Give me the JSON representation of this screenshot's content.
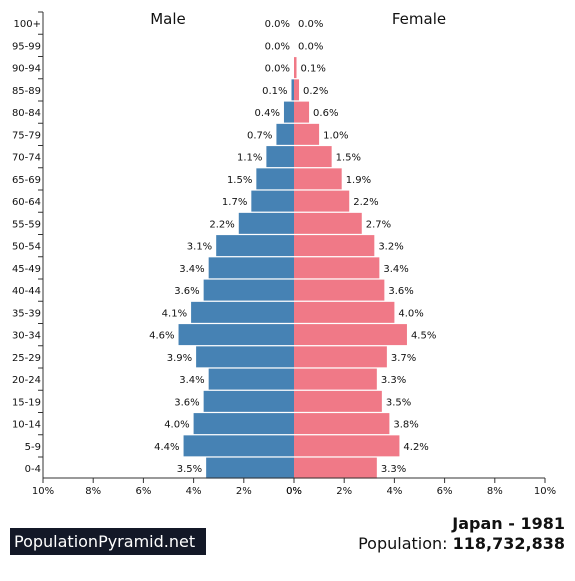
{
  "chart_data": {
    "type": "bar",
    "orientation": "horizontal",
    "categories": [
      "100+",
      "95-99",
      "90-94",
      "85-89",
      "80-84",
      "75-79",
      "70-74",
      "65-69",
      "60-64",
      "55-59",
      "50-54",
      "45-49",
      "40-44",
      "35-39",
      "30-34",
      "25-29",
      "20-24",
      "15-19",
      "10-14",
      "5-9",
      "0-4"
    ],
    "series": [
      {
        "name": "Male",
        "values": [
          0.0,
          0.0,
          0.0,
          0.1,
          0.4,
          0.7,
          1.1,
          1.5,
          1.7,
          2.2,
          3.1,
          3.4,
          3.6,
          4.1,
          4.6,
          3.9,
          3.4,
          3.6,
          4.0,
          4.4,
          3.5
        ],
        "color": "#4682b4"
      },
      {
        "name": "Female",
        "values": [
          0.0,
          0.0,
          0.1,
          0.2,
          0.6,
          1.0,
          1.5,
          1.9,
          2.2,
          2.7,
          3.2,
          3.4,
          3.6,
          4.0,
          4.5,
          3.7,
          3.3,
          3.5,
          3.8,
          4.2,
          3.3
        ],
        "color": "#f07987"
      }
    ],
    "value_labels": {
      "male": [
        "0.0%",
        "0.0%",
        "0.0%",
        "0.1%",
        "0.4%",
        "0.7%",
        "1.1%",
        "1.5%",
        "1.7%",
        "2.2%",
        "3.1%",
        "3.4%",
        "3.6%",
        "4.1%",
        "4.6%",
        "3.9%",
        "3.4%",
        "3.6%",
        "4.0%",
        "4.4%",
        "3.5%"
      ],
      "female": [
        "0.0%",
        "0.0%",
        "0.1%",
        "0.2%",
        "0.6%",
        "1.0%",
        "1.5%",
        "1.9%",
        "2.2%",
        "2.7%",
        "3.2%",
        "3.4%",
        "3.6%",
        "4.0%",
        "4.5%",
        "3.7%",
        "3.3%",
        "3.5%",
        "3.8%",
        "4.2%",
        "3.3%"
      ]
    },
    "x_ticks_left": [
      "10%",
      "8%",
      "6%",
      "4%",
      "2%",
      "0%"
    ],
    "x_ticks_right": [
      "0%",
      "2%",
      "4%",
      "6%",
      "8%",
      "10%"
    ],
    "xlim": [
      0,
      10
    ],
    "grid": false,
    "legend": "none"
  },
  "header": {
    "male_label": "Male",
    "female_label": "Female"
  },
  "footer": {
    "brand": "PopulationPyramid.net",
    "title": "Japan - 1981",
    "population_prefix": "Population: ",
    "population_value": "118,732,838"
  }
}
